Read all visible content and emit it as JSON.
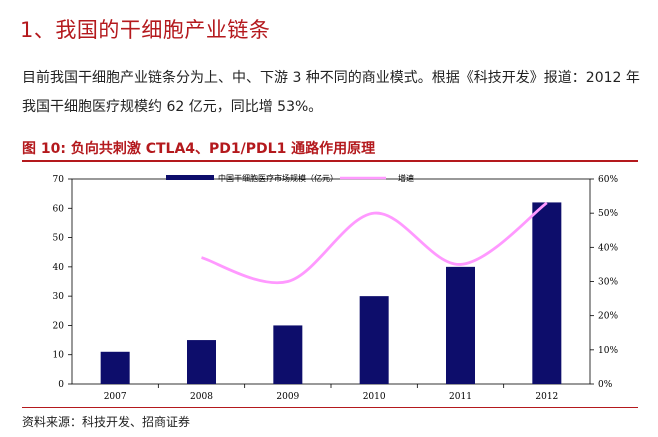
{
  "heading": "1、我国的干细胞产业链条",
  "paragraph": "目前我国干细胞产业链条分为上、中、下游 3 种不同的商业模式。根据《科技开发》报道：2012 年我国干细胞医疗规模约 62 亿元，同比增 53%。",
  "figure_title": "图 10:  负向共刺激 CTLA4、PD1/PDL1 通路作用原理",
  "source": "资料来源：科技开发、招商证券",
  "colors": {
    "bar": "#0d0d6b",
    "line": "#ff99ff",
    "accent": "#b4191d"
  },
  "chart_data": {
    "type": "bar",
    "categories": [
      "2007",
      "2008",
      "2009",
      "2010",
      "2011",
      "2012"
    ],
    "series": [
      {
        "name": "中国干细胞医疗市场规模（亿元）",
        "type": "bar",
        "axis": "left",
        "values": [
          11,
          15,
          20,
          30,
          40,
          62
        ]
      },
      {
        "name": "增速",
        "type": "line",
        "axis": "right",
        "values": [
          null,
          37,
          30,
          50,
          35,
          53
        ]
      }
    ],
    "ylim": [
      0,
      70
    ],
    "yticks": [
      "0",
      "10",
      "20",
      "30",
      "40",
      "50",
      "60",
      "70"
    ],
    "y2lim": [
      0,
      60
    ],
    "y2ticks": [
      "0%",
      "10%",
      "20%",
      "30%",
      "40%",
      "50%",
      "60%"
    ],
    "legend_position": "top",
    "grid": false
  }
}
